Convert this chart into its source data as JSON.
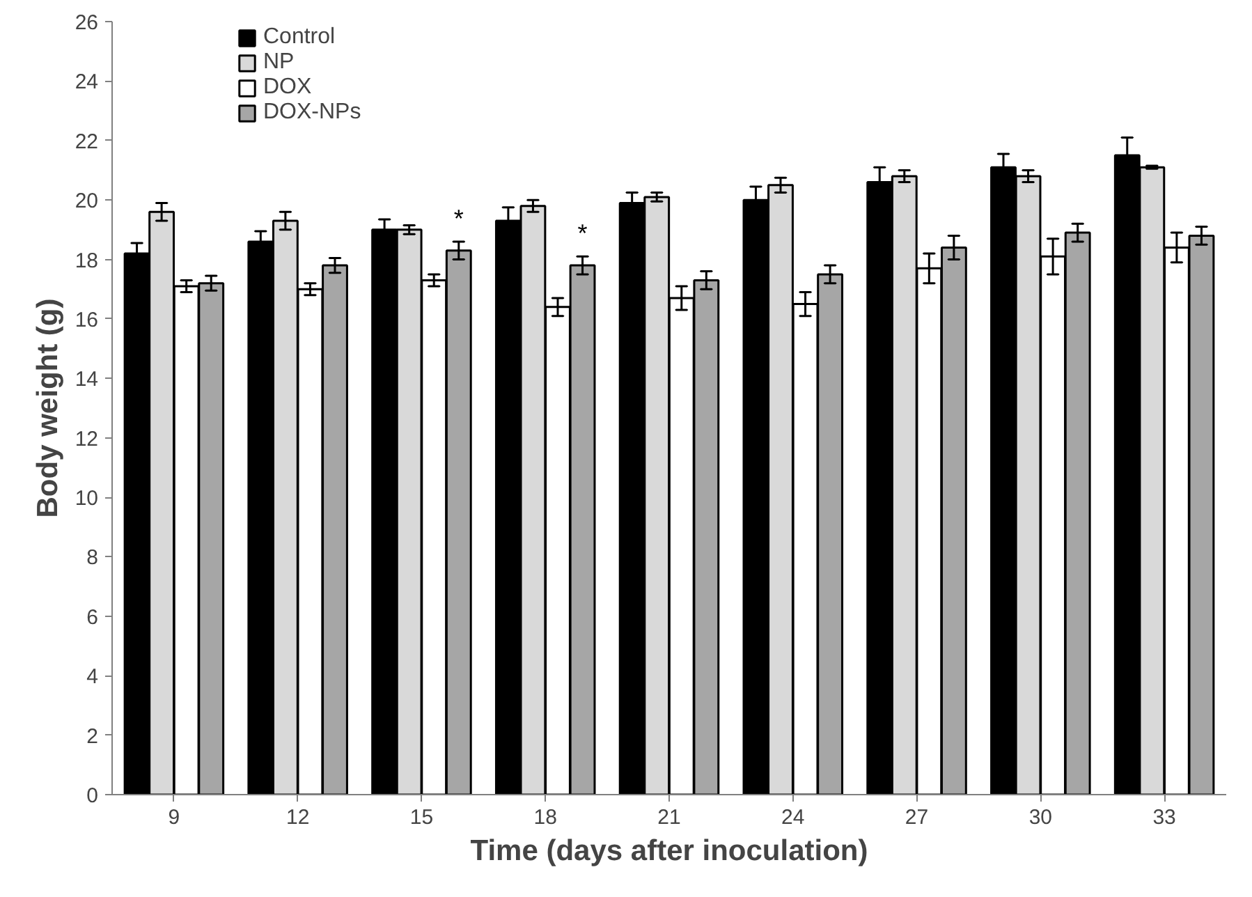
{
  "chart_data": {
    "type": "bar",
    "xlabel": "Time (days after inoculation)",
    "ylabel": "Body weight (g)",
    "categories": [
      "9",
      "12",
      "15",
      "18",
      "21",
      "24",
      "27",
      "30",
      "33"
    ],
    "series": [
      {
        "name": "Control",
        "color": "#000000",
        "values": [
          18.2,
          18.6,
          19.0,
          19.3,
          19.9,
          20.0,
          20.6,
          21.1,
          21.5
        ],
        "errors": [
          0.35,
          0.35,
          0.35,
          0.45,
          0.35,
          0.45,
          0.5,
          0.45,
          0.6
        ]
      },
      {
        "name": "NP",
        "color": "#d9d9d9",
        "values": [
          19.6,
          19.3,
          19.0,
          19.8,
          20.1,
          20.5,
          20.8,
          20.8,
          21.1
        ],
        "errors": [
          0.3,
          0.3,
          0.15,
          0.2,
          0.15,
          0.25,
          0.2,
          0.2,
          0.05
        ]
      },
      {
        "name": "DOX",
        "color": "#ffffff",
        "values": [
          17.1,
          17.0,
          17.3,
          16.4,
          16.7,
          16.5,
          17.7,
          18.1,
          18.4
        ],
        "errors": [
          0.2,
          0.2,
          0.2,
          0.3,
          0.4,
          0.4,
          0.5,
          0.6,
          0.5
        ]
      },
      {
        "name": "DOX-NPs",
        "color": "#a6a6a6",
        "values": [
          17.2,
          17.8,
          18.3,
          17.8,
          17.3,
          17.5,
          18.4,
          18.9,
          18.8
        ],
        "errors": [
          0.25,
          0.25,
          0.3,
          0.3,
          0.3,
          0.3,
          0.4,
          0.3,
          0.3
        ]
      }
    ],
    "annotations": [
      {
        "text": "*",
        "x": "15",
        "y": 18.9
      },
      {
        "text": "*",
        "x": "18",
        "y": 18.4
      }
    ],
    "ylim": [
      0,
      26
    ],
    "yticks": [
      0,
      2,
      4,
      6,
      8,
      10,
      12,
      14,
      16,
      18,
      20,
      22,
      24,
      26
    ],
    "grid": false,
    "legend": "top left"
  }
}
